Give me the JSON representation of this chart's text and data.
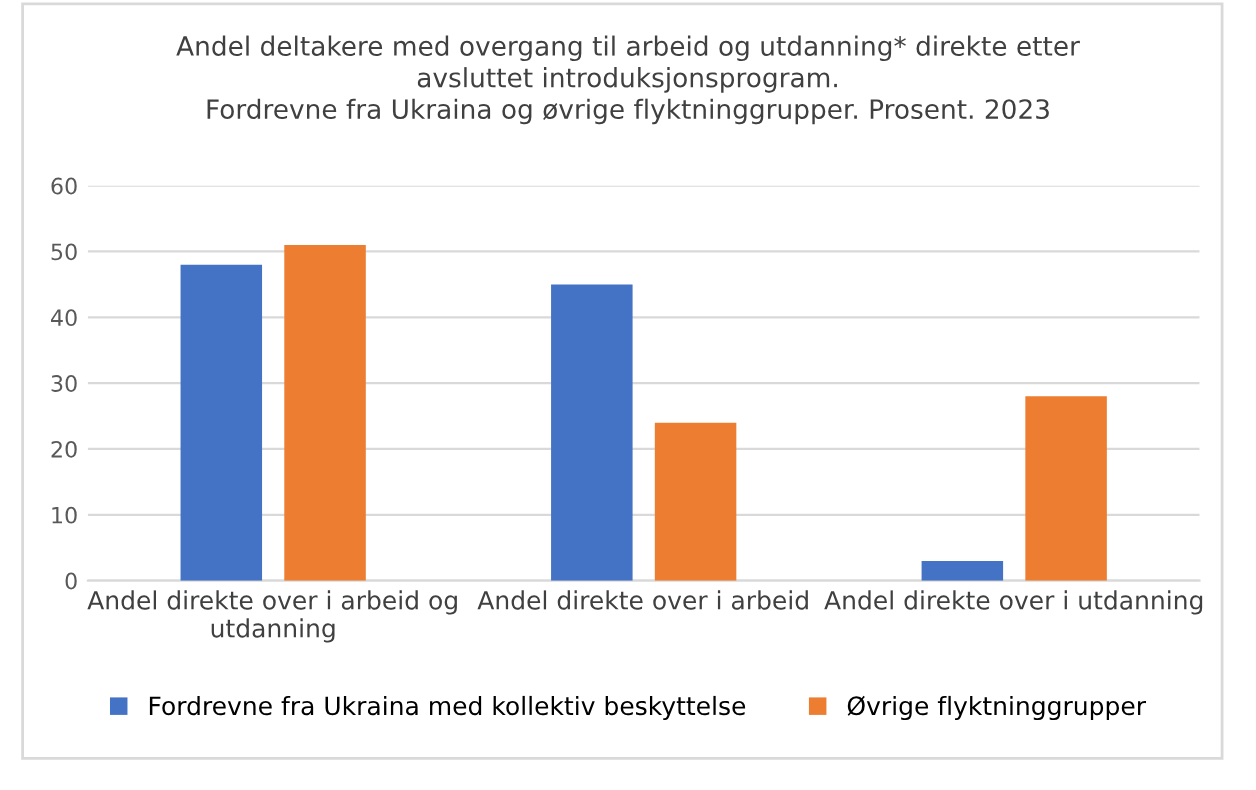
{
  "chart_data": {
    "type": "bar",
    "title": "Andel deltakere med overgang til arbeid og utdanning* direkte etter\navsluttet introduksjonsprogram.\nFordrevne fra Ukraina og øvrige flyktninggrupper. Prosent. 2023",
    "categories": [
      "Andel direkte over i arbeid og\nutdanning",
      "Andel direkte over i arbeid",
      "Andel direkte over i utdanning"
    ],
    "series": [
      {
        "name": "Fordrevne fra Ukraina med kollektiv beskyttelse",
        "color": "#4472c4",
        "values": [
          48,
          45,
          3
        ]
      },
      {
        "name": "Øvrige flyktninggrupper",
        "color": "#ed7d31",
        "values": [
          51,
          24,
          28
        ]
      }
    ],
    "ylim": [
      0,
      60
    ],
    "yticks": [
      0,
      10,
      20,
      30,
      40,
      50,
      60
    ],
    "grid": "y",
    "legend": "bottom"
  }
}
